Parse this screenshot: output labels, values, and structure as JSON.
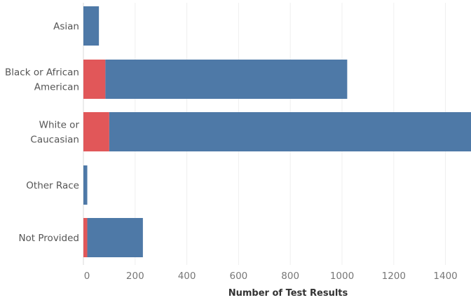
{
  "chart_data": {
    "type": "bar",
    "orientation": "horizontal",
    "stacked": true,
    "categories": [
      [
        "Asian"
      ],
      [
        "Black or African",
        "American"
      ],
      [
        "White or",
        "Caucasian"
      ],
      [
        "Other Race"
      ],
      [
        "Not Provided"
      ]
    ],
    "series": [
      {
        "color": "#e15759",
        "values": [
          0,
          85,
          100,
          0,
          15
        ]
      },
      {
        "color": "#4e79a7",
        "values": [
          60,
          935,
          1410,
          15,
          215
        ]
      }
    ],
    "xlabel": "Number of Test Results",
    "xticks": [
      0,
      200,
      400,
      600,
      800,
      1000,
      1200,
      1400
    ],
    "xlim": [
      0,
      1500
    ],
    "grid": true
  }
}
